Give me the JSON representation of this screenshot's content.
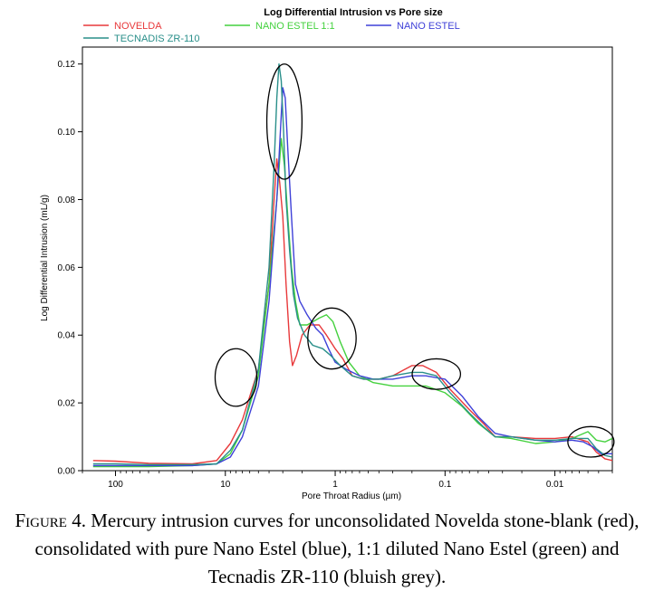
{
  "chart_data": {
    "type": "line",
    "title": "Log Differential Intrusion vs Pore size",
    "xlabel": "Pore Throat Radius (µm)",
    "ylabel": "Log Differential Intrusion (mL/g)",
    "x_scale": "log",
    "x_reversed": true,
    "xlim": [
      200,
      0.003
    ],
    "ylim": [
      0,
      0.125
    ],
    "x_ticks": [
      100,
      10,
      1,
      0.1,
      0.01
    ],
    "x_tick_labels": [
      "100",
      "10",
      "1",
      "0.1",
      "0.01"
    ],
    "y_ticks": [
      0,
      0.02,
      0.04,
      0.06,
      0.08,
      0.1,
      0.12
    ],
    "y_tick_labels": [
      "0.00",
      "0.02",
      "0.04",
      "0.06",
      "0.08",
      "0.10",
      "0.12"
    ],
    "grid": false,
    "legend_position": "top",
    "series": [
      {
        "name": "NOVELDA",
        "color": "#e8393b",
        "points": [
          [
            160,
            0.003
          ],
          [
            100,
            0.0028
          ],
          [
            50,
            0.0022
          ],
          [
            20,
            0.002
          ],
          [
            12,
            0.003
          ],
          [
            9,
            0.008
          ],
          [
            7,
            0.015
          ],
          [
            5,
            0.03
          ],
          [
            4,
            0.055
          ],
          [
            3.6,
            0.08
          ],
          [
            3.4,
            0.092
          ],
          [
            3.2,
            0.085
          ],
          [
            3,
            0.075
          ],
          [
            2.8,
            0.055
          ],
          [
            2.6,
            0.038
          ],
          [
            2.45,
            0.031
          ],
          [
            2.25,
            0.034
          ],
          [
            2,
            0.04
          ],
          [
            1.7,
            0.043
          ],
          [
            1.4,
            0.043
          ],
          [
            1.2,
            0.04
          ],
          [
            1,
            0.036
          ],
          [
            0.85,
            0.033
          ],
          [
            0.7,
            0.028
          ],
          [
            0.55,
            0.027
          ],
          [
            0.4,
            0.027
          ],
          [
            0.3,
            0.028
          ],
          [
            0.2,
            0.031
          ],
          [
            0.16,
            0.031
          ],
          [
            0.12,
            0.029
          ],
          [
            0.09,
            0.024
          ],
          [
            0.06,
            0.018
          ],
          [
            0.045,
            0.014
          ],
          [
            0.035,
            0.01
          ],
          [
            0.025,
            0.01
          ],
          [
            0.015,
            0.0095
          ],
          [
            0.01,
            0.0095
          ],
          [
            0.007,
            0.01
          ],
          [
            0.005,
            0.0085
          ],
          [
            0.0042,
            0.0055
          ],
          [
            0.0035,
            0.0035
          ],
          [
            0.003,
            0.003
          ]
        ]
      },
      {
        "name": "NANO ESTEL 1:1",
        "color": "#44d13e",
        "points": [
          [
            160,
            0.0012
          ],
          [
            100,
            0.0012
          ],
          [
            50,
            0.0012
          ],
          [
            20,
            0.0015
          ],
          [
            12,
            0.002
          ],
          [
            9,
            0.005
          ],
          [
            7,
            0.012
          ],
          [
            5,
            0.028
          ],
          [
            4,
            0.055
          ],
          [
            3.4,
            0.08
          ],
          [
            3.1,
            0.098
          ],
          [
            2.9,
            0.09
          ],
          [
            2.7,
            0.075
          ],
          [
            2.5,
            0.06
          ],
          [
            2.3,
            0.05
          ],
          [
            2.1,
            0.043
          ],
          [
            1.8,
            0.043
          ],
          [
            1.4,
            0.045
          ],
          [
            1.2,
            0.046
          ],
          [
            1.05,
            0.044
          ],
          [
            0.9,
            0.038
          ],
          [
            0.75,
            0.032
          ],
          [
            0.6,
            0.028
          ],
          [
            0.45,
            0.026
          ],
          [
            0.3,
            0.025
          ],
          [
            0.2,
            0.025
          ],
          [
            0.15,
            0.025
          ],
          [
            0.1,
            0.023
          ],
          [
            0.07,
            0.019
          ],
          [
            0.05,
            0.014
          ],
          [
            0.035,
            0.01
          ],
          [
            0.025,
            0.0095
          ],
          [
            0.015,
            0.008
          ],
          [
            0.01,
            0.0085
          ],
          [
            0.007,
            0.0095
          ],
          [
            0.005,
            0.0115
          ],
          [
            0.0042,
            0.009
          ],
          [
            0.0035,
            0.0085
          ],
          [
            0.003,
            0.0095
          ]
        ]
      },
      {
        "name": "NANO ESTEL",
        "color": "#3f41d8",
        "points": [
          [
            160,
            0.0015
          ],
          [
            100,
            0.0015
          ],
          [
            50,
            0.0015
          ],
          [
            20,
            0.0015
          ],
          [
            12,
            0.002
          ],
          [
            9,
            0.004
          ],
          [
            7,
            0.01
          ],
          [
            5,
            0.025
          ],
          [
            4,
            0.05
          ],
          [
            3.4,
            0.08
          ],
          [
            3.1,
            0.105
          ],
          [
            3,
            0.113
          ],
          [
            2.85,
            0.11
          ],
          [
            2.7,
            0.095
          ],
          [
            2.5,
            0.075
          ],
          [
            2.3,
            0.055
          ],
          [
            2.1,
            0.05
          ],
          [
            1.8,
            0.046
          ],
          [
            1.5,
            0.042
          ],
          [
            1.3,
            0.04
          ],
          [
            1.15,
            0.036
          ],
          [
            1,
            0.032
          ],
          [
            0.8,
            0.03
          ],
          [
            0.6,
            0.028
          ],
          [
            0.45,
            0.027
          ],
          [
            0.3,
            0.027
          ],
          [
            0.2,
            0.028
          ],
          [
            0.15,
            0.028
          ],
          [
            0.1,
            0.027
          ],
          [
            0.07,
            0.022
          ],
          [
            0.05,
            0.016
          ],
          [
            0.035,
            0.011
          ],
          [
            0.025,
            0.01
          ],
          [
            0.015,
            0.009
          ],
          [
            0.01,
            0.0085
          ],
          [
            0.007,
            0.009
          ],
          [
            0.0055,
            0.0085
          ],
          [
            0.0045,
            0.007
          ],
          [
            0.0038,
            0.005
          ],
          [
            0.003,
            0.005
          ]
        ]
      },
      {
        "name": "TECNADIS ZR-110",
        "color": "#2a8f8a",
        "points": [
          [
            160,
            0.002
          ],
          [
            100,
            0.002
          ],
          [
            50,
            0.0018
          ],
          [
            20,
            0.0018
          ],
          [
            12,
            0.002
          ],
          [
            9,
            0.006
          ],
          [
            7,
            0.012
          ],
          [
            5,
            0.03
          ],
          [
            4,
            0.06
          ],
          [
            3.6,
            0.09
          ],
          [
            3.4,
            0.11
          ],
          [
            3.25,
            0.12
          ],
          [
            3.1,
            0.115
          ],
          [
            2.95,
            0.1
          ],
          [
            2.8,
            0.08
          ],
          [
            2.6,
            0.065
          ],
          [
            2.4,
            0.052
          ],
          [
            2.2,
            0.045
          ],
          [
            1.9,
            0.04
          ],
          [
            1.6,
            0.037
          ],
          [
            1.3,
            0.036
          ],
          [
            1.1,
            0.034
          ],
          [
            0.9,
            0.031
          ],
          [
            0.7,
            0.028
          ],
          [
            0.55,
            0.027
          ],
          [
            0.4,
            0.027
          ],
          [
            0.3,
            0.028
          ],
          [
            0.2,
            0.029
          ],
          [
            0.16,
            0.029
          ],
          [
            0.12,
            0.028
          ],
          [
            0.09,
            0.023
          ],
          [
            0.06,
            0.017
          ],
          [
            0.045,
            0.013
          ],
          [
            0.035,
            0.01
          ],
          [
            0.025,
            0.01
          ],
          [
            0.015,
            0.009
          ],
          [
            0.01,
            0.009
          ],
          [
            0.007,
            0.0095
          ],
          [
            0.005,
            0.0095
          ],
          [
            0.0042,
            0.0065
          ],
          [
            0.0035,
            0.0045
          ],
          [
            0.003,
            0.004
          ]
        ]
      }
    ],
    "annotations": [
      {
        "shape": "ellipse",
        "cx": 2.9,
        "cy": 0.103,
        "rx_decades": 0.16,
        "ry": 0.017
      },
      {
        "shape": "ellipse",
        "cx": 8.0,
        "cy": 0.0275,
        "rx_decades": 0.19,
        "ry": 0.0085
      },
      {
        "shape": "ellipse",
        "cx": 1.07,
        "cy": 0.039,
        "rx_decades": 0.22,
        "ry": 0.009
      },
      {
        "shape": "ellipse",
        "cx": 0.12,
        "cy": 0.0285,
        "rx_decades": 0.22,
        "ry": 0.0045
      },
      {
        "shape": "ellipse",
        "cx": 0.0047,
        "cy": 0.0085,
        "rx_decades": 0.21,
        "ry": 0.0045
      }
    ]
  },
  "caption": {
    "figure": "Figure 4.",
    "text": "Mercury intrusion curves for unconsolidated Novelda stone-blank (red), consolidated with pure Nano Estel (blue), 1:1 diluted Nano Estel (green) and Tecnadis ZR-110 (bluish grey)."
  }
}
